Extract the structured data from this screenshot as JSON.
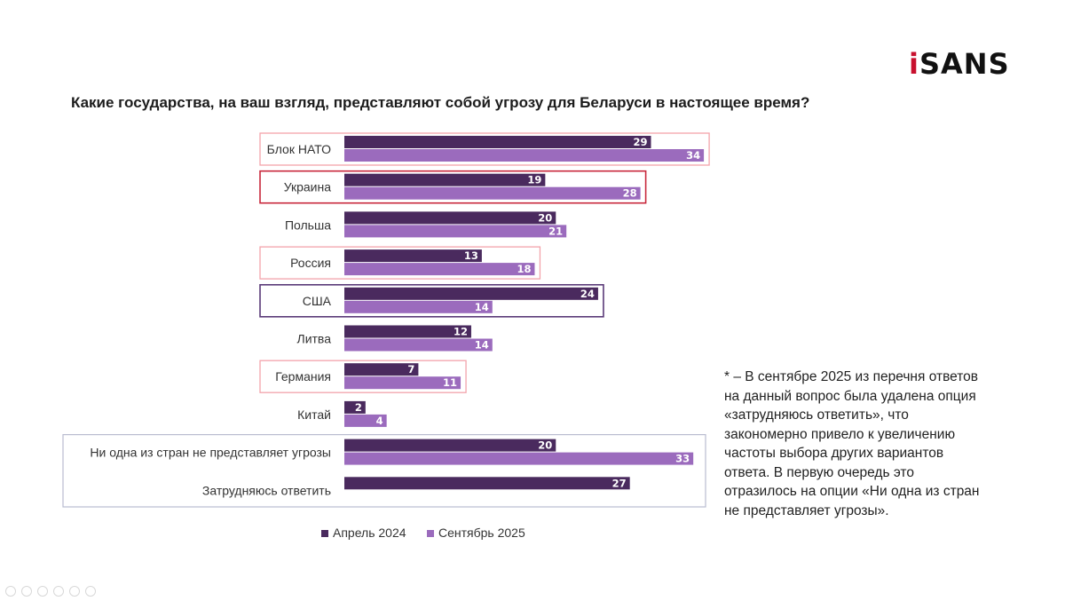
{
  "logo": {
    "accent": "i",
    "text": "SANS"
  },
  "question": "Какие государства, на ваш взгляд, представляют собой угрозу для Беларуси в настоящее время?",
  "colors": {
    "april": "#4a2a5e",
    "september": "#9b6bbd",
    "highlight_light": "#f3a3ab",
    "highlight_dark": "#c8283c",
    "highlight_purple": "#5a3a78",
    "group_box": "#b9bcd0"
  },
  "chart_data": {
    "type": "bar",
    "orientation": "horizontal",
    "title": "Какие государства, на ваш взгляд, представляют собой угрозу для Беларуси в настоящее время?",
    "categories": [
      "Блок НАТО",
      "Украина",
      "Польша",
      "Россия",
      "США",
      "Литва",
      "Германия",
      "Китай",
      "Ни одна из стран не представляет угрозы",
      "Затрудняюсь ответить"
    ],
    "series": [
      {
        "name": "Апрель 2024",
        "values": [
          29,
          19,
          20,
          13,
          24,
          12,
          7,
          2,
          20,
          27
        ]
      },
      {
        "name": "Сентябрь 2025",
        "values": [
          34,
          28,
          21,
          18,
          14,
          14,
          11,
          4,
          33,
          null
        ]
      }
    ],
    "highlights": [
      {
        "category": "Блок НАТО",
        "style": "light"
      },
      {
        "category": "Украина",
        "style": "dark"
      },
      {
        "category": "Россия",
        "style": "light"
      },
      {
        "category": "США",
        "style": "purple"
      },
      {
        "category": "Германия",
        "style": "light"
      }
    ],
    "group_box_categories": [
      "Ни одна из стран не представляет угрозы",
      "Затрудняюсь ответить"
    ],
    "xlim": [
      0,
      35
    ],
    "legend_position": "bottom-center"
  },
  "footnote": "* – В сентябре 2025 из перечня ответов на данный вопрос была удалена опция «затрудняюсь ответить», что закономерно привело к увеличению частоты выбора других вариантов ответа. В первую очередь это отразилось на опции «Ни одна из стран не представляет угрозы».",
  "legend": [
    {
      "label": "Апрель 2024",
      "color": "#4a2a5e"
    },
    {
      "label": "Сентябрь 2025",
      "color": "#9b6bbd"
    }
  ],
  "page_controls": [
    "prev",
    "next",
    "pen",
    "pages",
    "zoom",
    "more"
  ]
}
